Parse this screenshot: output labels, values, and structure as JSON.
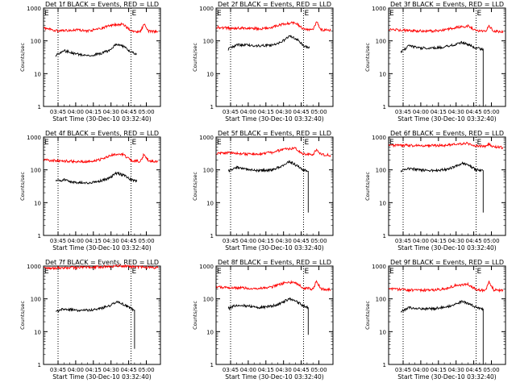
{
  "figure": {
    "x_axis_title": "Start Time (30-Dec-10 03:32:40)",
    "y_axis_title": "Counts/sec",
    "x_tick_labels": [
      "03:45",
      "04:00",
      "04:15",
      "04:30",
      "04:45",
      "05:00"
    ],
    "y_tick_labels": [
      "1",
      "10",
      "100",
      "1000"
    ],
    "marker_label": "E",
    "colors": {
      "events": "#000000",
      "lld": "#ff0000"
    }
  },
  "chart_data": [
    {
      "type": "line",
      "title": "Det 1f BLACK = Events, RED = LLD",
      "xlabel": "Start Time (30-Dec-10 03:32:40)",
      "ylabel": "Counts/sec",
      "xlim": [
        "03:32:40",
        "05:12"
      ],
      "ylim": [
        1,
        1000
      ],
      "yscale": "log",
      "event_marker_times": [
        "03:45",
        "04:47"
      ],
      "marker_label": "E",
      "series": [
        {
          "name": "Events",
          "color": "#000000",
          "x": [
            "03:43",
            "03:50",
            "04:00",
            "04:10",
            "04:20",
            "04:28",
            "04:35",
            "04:42",
            "04:47",
            "04:52"
          ],
          "y": [
            35,
            50,
            40,
            35,
            40,
            50,
            80,
            65,
            45,
            40
          ]
        },
        {
          "name": "LLD",
          "color": "#ff0000",
          "x": [
            "03:33",
            "03:45",
            "04:00",
            "04:10",
            "04:20",
            "04:30",
            "04:40",
            "04:47",
            "04:55",
            "04:58",
            "05:02",
            "05:10"
          ],
          "y": [
            250,
            200,
            220,
            200,
            230,
            300,
            330,
            200,
            190,
            330,
            200,
            190
          ]
        }
      ]
    },
    {
      "type": "line",
      "title": "Det 2f BLACK = Events, RED = LLD",
      "xlabel": "Start Time (30-Dec-10 03:32:40)",
      "ylabel": "Counts/sec",
      "xlim": [
        "03:32:40",
        "05:12"
      ],
      "ylim": [
        1,
        1000
      ],
      "yscale": "log",
      "event_marker_times": [
        "03:45",
        "04:47"
      ],
      "marker_label": "E",
      "series": [
        {
          "name": "Events",
          "color": "#000000",
          "x": [
            "03:43",
            "03:50",
            "04:00",
            "04:10",
            "04:20",
            "04:28",
            "04:35",
            "04:42",
            "04:47",
            "04:52"
          ],
          "y": [
            55,
            75,
            75,
            70,
            75,
            90,
            140,
            110,
            70,
            60
          ]
        },
        {
          "name": "LLD",
          "color": "#ff0000",
          "x": [
            "03:33",
            "03:45",
            "04:00",
            "04:10",
            "04:20",
            "04:30",
            "04:40",
            "04:47",
            "04:55",
            "04:58",
            "05:02",
            "05:10"
          ],
          "y": [
            260,
            240,
            250,
            230,
            260,
            330,
            360,
            230,
            220,
            380,
            220,
            210
          ]
        }
      ]
    },
    {
      "type": "line",
      "title": "Det 3f BLACK = Events, RED = LLD",
      "xlabel": "Start Time (30-Dec-10 03:32:40)",
      "ylabel": "Counts/sec",
      "xlim": [
        "03:32:40",
        "05:12"
      ],
      "ylim": [
        1,
        1000
      ],
      "yscale": "log",
      "event_marker_times": [
        "03:45",
        "04:47"
      ],
      "marker_label": "E",
      "series": [
        {
          "name": "Events",
          "color": "#000000",
          "x": [
            "03:43",
            "03:50",
            "04:00",
            "04:10",
            "04:20",
            "04:28",
            "04:35",
            "04:42",
            "04:47",
            "04:53",
            "04:53"
          ],
          "y": [
            45,
            70,
            60,
            60,
            65,
            75,
            90,
            75,
            60,
            55,
            1
          ]
        },
        {
          "name": "LLD",
          "color": "#ff0000",
          "x": [
            "03:33",
            "03:45",
            "04:00",
            "04:10",
            "04:20",
            "04:30",
            "04:40",
            "04:47",
            "04:55",
            "04:58",
            "05:02",
            "05:10"
          ],
          "y": [
            220,
            210,
            200,
            200,
            210,
            260,
            280,
            200,
            190,
            280,
            200,
            190
          ]
        }
      ]
    },
    {
      "type": "line",
      "title": "Det 4f BLACK = Events, RED = LLD",
      "xlabel": "Start Time (30-Dec-10 03:32:40)",
      "ylabel": "Counts/sec",
      "xlim": [
        "03:32:40",
        "05:12"
      ],
      "ylim": [
        1,
        1000
      ],
      "yscale": "log",
      "event_marker_times": [
        "03:45",
        "04:47"
      ],
      "marker_label": "E",
      "series": [
        {
          "name": "Events",
          "color": "#000000",
          "x": [
            "03:43",
            "03:50",
            "04:00",
            "04:10",
            "04:20",
            "04:28",
            "04:35",
            "04:42",
            "04:47",
            "04:52"
          ],
          "y": [
            45,
            50,
            40,
            40,
            45,
            55,
            80,
            65,
            50,
            45
          ]
        },
        {
          "name": "LLD",
          "color": "#ff0000",
          "x": [
            "03:33",
            "03:45",
            "04:00",
            "04:10",
            "04:20",
            "04:30",
            "04:40",
            "04:47",
            "04:55",
            "04:58",
            "05:02",
            "05:10"
          ],
          "y": [
            200,
            190,
            180,
            180,
            200,
            280,
            300,
            190,
            180,
            300,
            190,
            180
          ]
        }
      ]
    },
    {
      "type": "line",
      "title": "Det 5f BLACK = Events, RED = LLD",
      "xlabel": "Start Time (30-Dec-10 03:32:40)",
      "ylabel": "Counts/sec",
      "xlim": [
        "03:32:40",
        "05:12"
      ],
      "ylim": [
        1,
        1000
      ],
      "yscale": "log",
      "event_marker_times": [
        "03:45",
        "04:47"
      ],
      "marker_label": "E",
      "series": [
        {
          "name": "Events",
          "color": "#000000",
          "x": [
            "03:43",
            "03:50",
            "04:00",
            "04:10",
            "04:20",
            "04:28",
            "04:35",
            "04:42",
            "04:47",
            "04:51",
            "04:51"
          ],
          "y": [
            90,
            120,
            100,
            95,
            100,
            130,
            180,
            130,
            100,
            90,
            5
          ]
        },
        {
          "name": "LLD",
          "color": "#ff0000",
          "x": [
            "03:33",
            "03:45",
            "04:00",
            "04:10",
            "04:20",
            "04:30",
            "04:40",
            "04:47",
            "04:55",
            "04:58",
            "05:02",
            "05:10"
          ],
          "y": [
            320,
            330,
            300,
            310,
            340,
            420,
            450,
            300,
            290,
            420,
            290,
            280
          ]
        }
      ]
    },
    {
      "type": "line",
      "title": "Det 6f BLACK = Events, RED = LLD",
      "xlabel": "Start Time (30-Dec-10 03:32:40)",
      "ylabel": "Counts/sec",
      "xlim": [
        "03:32:40",
        "05:12"
      ],
      "ylim": [
        1,
        1000
      ],
      "yscale": "log",
      "event_marker_times": [
        "03:45",
        "04:47"
      ],
      "marker_label": "E",
      "series": [
        {
          "name": "Events",
          "color": "#000000",
          "x": [
            "03:43",
            "03:50",
            "04:00",
            "04:10",
            "04:20",
            "04:28",
            "04:35",
            "04:42",
            "04:47",
            "04:53",
            "04:53"
          ],
          "y": [
            90,
            110,
            100,
            95,
            100,
            120,
            160,
            130,
            100,
            95,
            5
          ]
        },
        {
          "name": "LLD",
          "color": "#ff0000",
          "x": [
            "03:33",
            "03:45",
            "04:00",
            "04:10",
            "04:20",
            "04:30",
            "04:40",
            "04:47",
            "04:55",
            "04:58",
            "05:02",
            "05:10"
          ],
          "y": [
            550,
            560,
            540,
            550,
            560,
            620,
            640,
            540,
            520,
            600,
            500,
            480
          ]
        }
      ]
    },
    {
      "type": "line",
      "title": "Det 7f BLACK = Events, RED = LLD",
      "xlabel": "Start Time (30-Dec-10 03:32:40)",
      "ylabel": "Counts/sec",
      "xlim": [
        "03:32:40",
        "05:12"
      ],
      "ylim": [
        1,
        1000
      ],
      "yscale": "log",
      "event_marker_times": [
        "03:45",
        "04:47"
      ],
      "marker_label": "E",
      "series": [
        {
          "name": "Events",
          "color": "#000000",
          "x": [
            "03:43",
            "03:50",
            "04:00",
            "04:10",
            "04:20",
            "04:28",
            "04:35",
            "04:42",
            "04:47",
            "04:50",
            "04:50"
          ],
          "y": [
            40,
            50,
            45,
            45,
            50,
            60,
            80,
            65,
            50,
            45,
            3
          ]
        },
        {
          "name": "LLD",
          "color": "#ff0000",
          "x": [
            "03:33",
            "03:45",
            "04:00",
            "04:10",
            "04:20",
            "04:30",
            "04:40",
            "04:47",
            "04:55",
            "04:58",
            "05:02",
            "05:10"
          ],
          "y": [
            850,
            880,
            900,
            920,
            950,
            980,
            1000,
            950,
            920,
            960,
            900,
            880
          ]
        }
      ]
    },
    {
      "type": "line",
      "title": "Det 8f BLACK = Events, RED = LLD",
      "xlabel": "Start Time (30-Dec-10 03:32:40)",
      "ylabel": "Counts/sec",
      "xlim": [
        "03:32:40",
        "05:12"
      ],
      "ylim": [
        1,
        1000
      ],
      "yscale": "log",
      "event_marker_times": [
        "03:45",
        "04:47"
      ],
      "marker_label": "E",
      "series": [
        {
          "name": "Events",
          "color": "#000000",
          "x": [
            "03:43",
            "03:50",
            "04:00",
            "04:10",
            "04:20",
            "04:28",
            "04:35",
            "04:42",
            "04:47",
            "04:51",
            "04:51"
          ],
          "y": [
            50,
            65,
            60,
            55,
            60,
            75,
            100,
            80,
            60,
            55,
            8
          ]
        },
        {
          "name": "LLD",
          "color": "#ff0000",
          "x": [
            "03:33",
            "03:45",
            "04:00",
            "04:10",
            "04:20",
            "04:30",
            "04:40",
            "04:47",
            "04:55",
            "04:58",
            "05:02",
            "05:10"
          ],
          "y": [
            230,
            220,
            210,
            210,
            230,
            300,
            320,
            210,
            200,
            350,
            200,
            190
          ]
        }
      ]
    },
    {
      "type": "line",
      "title": "Det 9f BLACK = Events, RED = LLD",
      "xlabel": "Start Time (30-Dec-10 03:32:40)",
      "ylabel": "Counts/sec",
      "xlim": [
        "03:32:40",
        "05:12"
      ],
      "ylim": [
        1,
        1000
      ],
      "yscale": "log",
      "event_marker_times": [
        "03:45",
        "04:47"
      ],
      "marker_label": "E",
      "series": [
        {
          "name": "Events",
          "color": "#000000",
          "x": [
            "03:43",
            "03:50",
            "04:00",
            "04:10",
            "04:20",
            "04:28",
            "04:35",
            "04:42",
            "04:47",
            "04:53",
            "04:53"
          ],
          "y": [
            40,
            55,
            50,
            50,
            55,
            65,
            85,
            70,
            55,
            50,
            1
          ]
        },
        {
          "name": "LLD",
          "color": "#ff0000",
          "x": [
            "03:33",
            "03:45",
            "04:00",
            "04:10",
            "04:20",
            "04:30",
            "04:40",
            "04:47",
            "04:55",
            "04:58",
            "05:02",
            "05:10"
          ],
          "y": [
            200,
            190,
            180,
            185,
            200,
            260,
            280,
            190,
            180,
            330,
            190,
            180
          ]
        }
      ]
    }
  ]
}
